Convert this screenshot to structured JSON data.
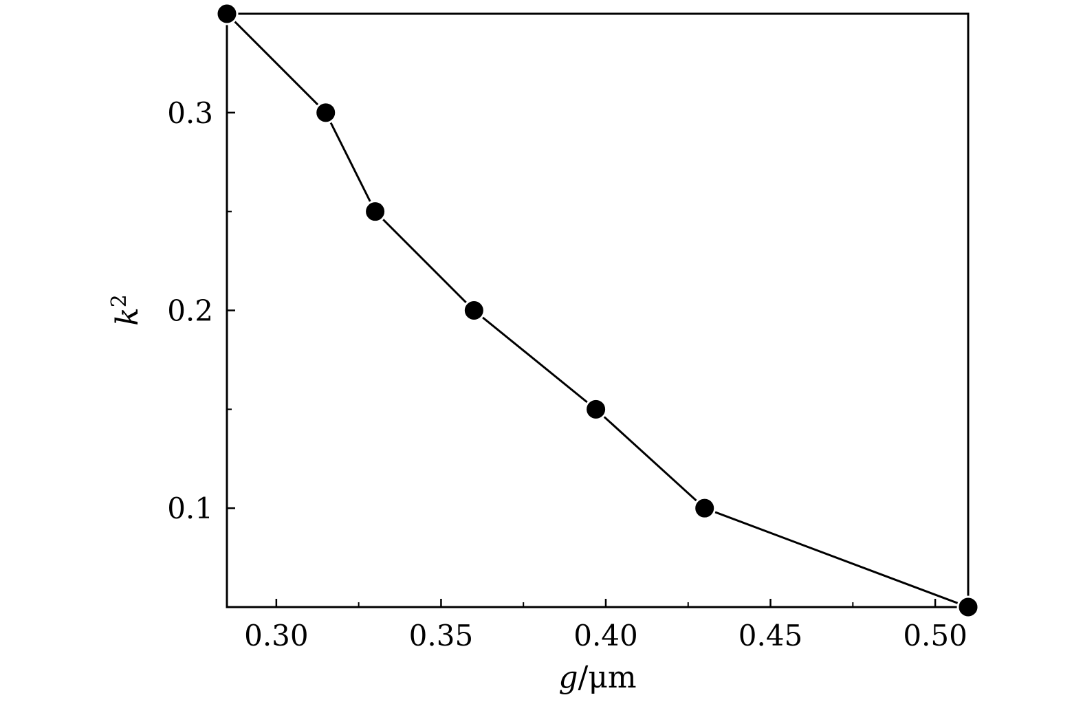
{
  "chart_data": {
    "type": "line",
    "xlabel": {
      "var": "g",
      "unit": "/μm"
    },
    "ylabel": {
      "var": "k",
      "sup": "2"
    },
    "xlim": [
      0.285,
      0.51
    ],
    "ylim": [
      0.05,
      0.35
    ],
    "xticks": [
      {
        "value": 0.3,
        "label": "0.30"
      },
      {
        "value": 0.35,
        "label": "0.35"
      },
      {
        "value": 0.4,
        "label": "0.40"
      },
      {
        "value": 0.45,
        "label": "0.45"
      },
      {
        "value": 0.5,
        "label": "0.50"
      }
    ],
    "x_minor_ticks": [
      0.325,
      0.375,
      0.425,
      0.475
    ],
    "yticks": [
      {
        "value": 0.1,
        "label": "0.1"
      },
      {
        "value": 0.2,
        "label": "0.2"
      },
      {
        "value": 0.3,
        "label": "0.3"
      }
    ],
    "y_minor_ticks": [
      0.15,
      0.25
    ],
    "grid": false,
    "series": [
      {
        "marker": "filled-circle",
        "color": "#000000",
        "x": [
          0.285,
          0.315,
          0.33,
          0.36,
          0.397,
          0.43,
          0.51
        ],
        "y": [
          0.35,
          0.3,
          0.25,
          0.2,
          0.15,
          0.1,
          0.05
        ]
      }
    ]
  }
}
